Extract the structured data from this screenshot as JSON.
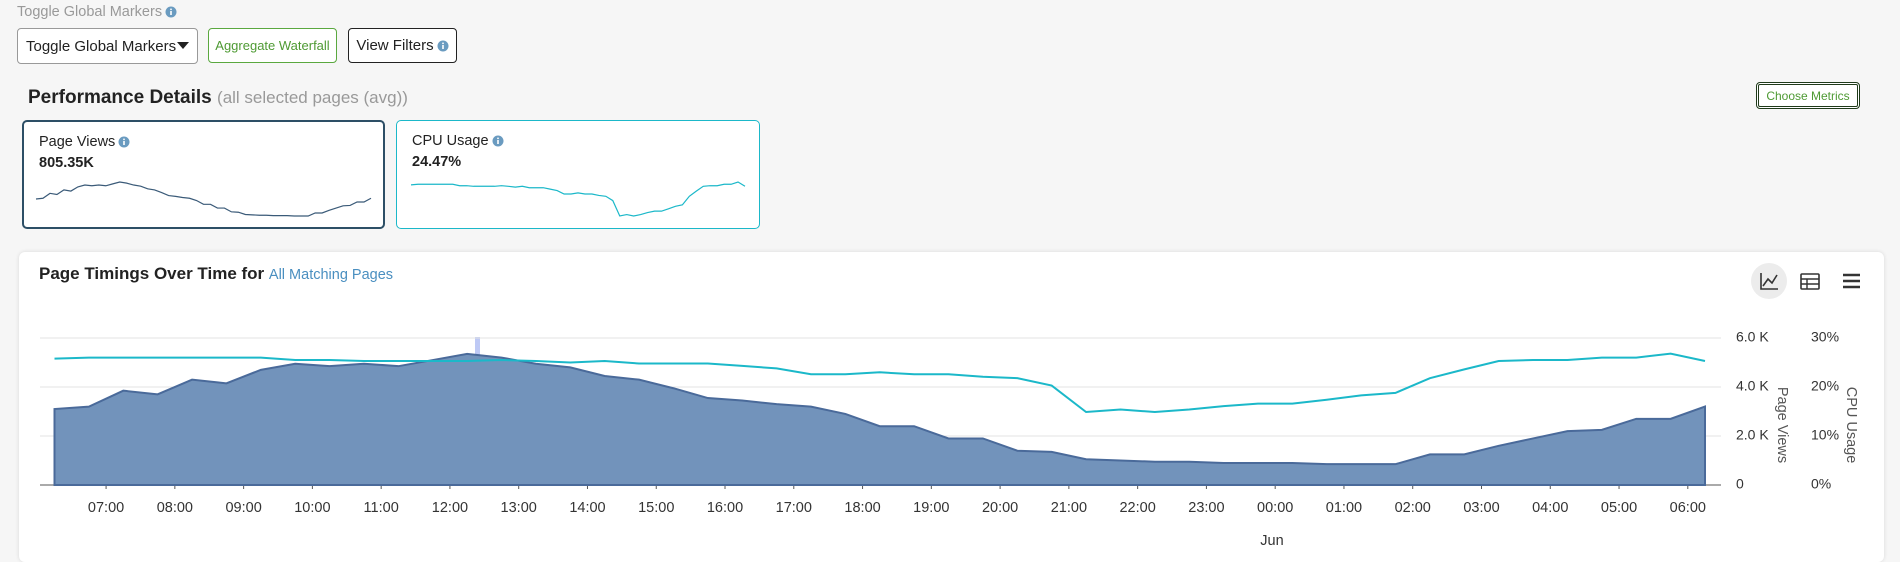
{
  "controls": {
    "markers_label": "Toggle Global Markers",
    "markers_select": "Toggle Global Markers",
    "aggregate_button": "Aggregate Waterfall",
    "filters_button": "View Filters"
  },
  "performance": {
    "title": "Performance Details",
    "subtitle": "(all selected pages (avg))",
    "choose_button": "Choose Metrics",
    "cards": [
      {
        "label": "Page Views",
        "value": "805.35K"
      },
      {
        "label": "CPU Usage",
        "value": "24.47%"
      }
    ]
  },
  "panel": {
    "title": "Page Timings Over Time for",
    "link": "All Matching Pages"
  },
  "chart_data": {
    "type": "area-line",
    "x": [
      "06:15",
      "06:45",
      "07:15",
      "07:45",
      "08:15",
      "08:45",
      "09:15",
      "09:45",
      "10:15",
      "10:45",
      "11:15",
      "11:45",
      "12:15",
      "12:45",
      "13:15",
      "13:45",
      "14:15",
      "14:45",
      "15:15",
      "15:45",
      "16:15",
      "16:45",
      "17:15",
      "17:45",
      "18:15",
      "18:45",
      "19:15",
      "19:45",
      "20:15",
      "20:45",
      "21:15",
      "21:45",
      "22:15",
      "22:45",
      "23:15",
      "23:45",
      "00:15",
      "00:45",
      "01:15",
      "01:45",
      "02:15",
      "02:45",
      "03:15",
      "03:45",
      "04:15",
      "04:45",
      "05:15",
      "05:45",
      "06:15"
    ],
    "series": [
      {
        "name": "Page Views",
        "kind": "area",
        "color": "#7293bb",
        "values": [
          3100,
          3200,
          3850,
          3700,
          4300,
          4150,
          4700,
          4950,
          4850,
          4950,
          4850,
          5100,
          5350,
          5200,
          4950,
          4800,
          4450,
          4300,
          3950,
          3550,
          3450,
          3300,
          3200,
          2900,
          2400,
          2400,
          1900,
          1900,
          1400,
          1350,
          1050,
          1000,
          950,
          950,
          900,
          900,
          900,
          850,
          850,
          850,
          1250,
          1250,
          1600,
          1900,
          2200,
          2250,
          2700,
          2700,
          3200
        ]
      },
      {
        "name": "CPU Usage",
        "kind": "line",
        "axis": "y2",
        "color": "#1bb8c9",
        "values": [
          25.8,
          26,
          26,
          26,
          26,
          26,
          26,
          25.5,
          25.5,
          25.3,
          25.3,
          25.3,
          25.3,
          25.5,
          25.3,
          25,
          25.3,
          24.8,
          24.8,
          24.8,
          24.3,
          23.8,
          22.6,
          22.6,
          23,
          22.6,
          22.6,
          22.1,
          21.8,
          20.3,
          14.9,
          15.4,
          14.9,
          15.4,
          16.1,
          16.6,
          16.6,
          17.4,
          18.3,
          18.8,
          21.8,
          23.6,
          25.3,
          25.5,
          25.5,
          26,
          26,
          26.8,
          25.3
        ]
      }
    ],
    "xlim": [
      "06:15",
      "06:15"
    ],
    "xticks": [
      "07:00",
      "08:00",
      "09:00",
      "10:00",
      "11:00",
      "12:00",
      "13:00",
      "14:00",
      "15:00",
      "16:00",
      "17:00",
      "18:00",
      "19:00",
      "20:00",
      "21:00",
      "22:00",
      "23:00",
      "00:00",
      "01:00",
      "02:00",
      "03:00",
      "04:00",
      "05:00",
      "06:00"
    ],
    "xlabel": "Jun",
    "ylim": [
      0,
      6000
    ],
    "yticks": [
      0,
      {
        "value": 2000,
        "label": "2.0 K"
      },
      {
        "value": 4000,
        "label": "4.0 K"
      },
      {
        "value": 6000,
        "label": "6.0 K"
      }
    ],
    "y2lim": [
      0,
      30
    ],
    "y2ticks": [
      {
        "value": 0,
        "label": "0%"
      },
      {
        "value": 10,
        "label": "10%"
      },
      {
        "value": 20,
        "label": "20%"
      },
      {
        "value": 30,
        "label": "30%"
      }
    ],
    "grid": true
  }
}
